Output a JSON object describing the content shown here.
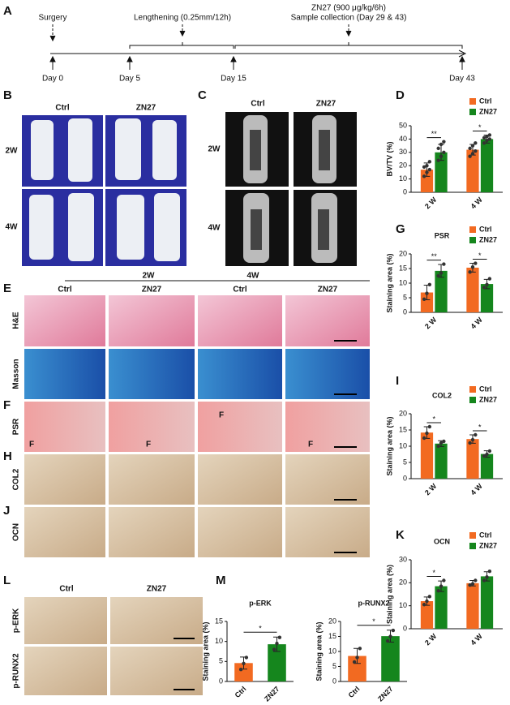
{
  "panel_labels": [
    "A",
    "B",
    "C",
    "D",
    "E",
    "F",
    "G",
    "H",
    "I",
    "J",
    "K",
    "L",
    "M"
  ],
  "timeline": {
    "events": [
      "Surgery",
      "Lengthening (0.25mm/12h)",
      "ZN27 (900 μg/kg/6h)",
      "Sample collection (Day 29 & 43)"
    ],
    "days": [
      "Day 0",
      "Day 5",
      "Day 15",
      "Day 43"
    ]
  },
  "panel_b": {
    "columns": [
      "Ctrl",
      "ZN27"
    ],
    "rows": [
      "2W",
      "4W"
    ]
  },
  "panel_c": {
    "columns": [
      "Ctrl",
      "ZN27"
    ],
    "rows": [
      "2W",
      "4W"
    ]
  },
  "panel_e": {
    "timepoints": [
      "2W",
      "4W"
    ],
    "columns": [
      "Ctrl",
      "ZN27",
      "Ctrl",
      "ZN27"
    ],
    "stains": [
      "H&E",
      "Masson",
      "PSR",
      "COL2",
      "OCN"
    ],
    "psr_marks": [
      "F",
      "F",
      "F",
      "F"
    ]
  },
  "panel_l": {
    "columns": [
      "Ctrl",
      "ZN27"
    ],
    "rows": [
      "p-ERK",
      "p-RUNX2"
    ]
  },
  "chart_data": [
    {
      "type": "bar",
      "ylabel": "BV/TV (%)",
      "categories": [
        "2 W",
        "4 W"
      ],
      "ylim": [
        0,
        50
      ],
      "yticks": [
        0,
        10,
        20,
        30,
        40,
        50
      ],
      "legend": "top-right",
      "annotations": [
        "**",
        "*"
      ],
      "series": [
        {
          "name": "Ctrl",
          "color": "#f26a21",
          "values": [
            17,
            32
          ],
          "errors": [
            5,
            4
          ],
          "points": [
            [
              12,
              15,
              17,
              19,
              20,
              23
            ],
            [
              27,
              29,
              31,
              33,
              35,
              37
            ]
          ]
        },
        {
          "name": "ZN27",
          "color": "#15861d",
          "values": [
            30,
            40
          ],
          "errors": [
            6,
            3
          ],
          "points": [
            [
              24,
              27,
              30,
              33,
              36,
              38
            ],
            [
              37,
              39,
              40,
              41,
              42,
              43
            ]
          ]
        }
      ]
    },
    {
      "type": "bar",
      "title": "PSR",
      "ylabel": "Staining area (%)",
      "categories": [
        "2 W",
        "4 W"
      ],
      "ylim": [
        0,
        20
      ],
      "yticks": [
        0,
        5,
        10,
        15,
        20
      ],
      "legend": "top-right",
      "annotations": [
        "**",
        "*"
      ],
      "series": [
        {
          "name": "Ctrl",
          "color": "#f26a21",
          "values": [
            6.8,
            15.3
          ],
          "errors": [
            2.5,
            1.5
          ],
          "points": [
            [
              4.5,
              6.5,
              9.5
            ],
            [
              13.8,
              15.5,
              16.8
            ]
          ]
        },
        {
          "name": "ZN27",
          "color": "#15861d",
          "values": [
            14.2,
            9.7
          ],
          "errors": [
            2.2,
            1.6
          ],
          "points": [
            [
              12.5,
              13.5,
              16.5
            ],
            [
              8.5,
              9.5,
              11.5
            ]
          ]
        }
      ]
    },
    {
      "type": "bar",
      "title": "COL2",
      "ylabel": "Staining area (%)",
      "categories": [
        "2 W",
        "4 W"
      ],
      "ylim": [
        0,
        20
      ],
      "yticks": [
        0,
        5,
        10,
        15,
        20
      ],
      "legend": "top-right",
      "annotations": [
        "*",
        "*"
      ],
      "series": [
        {
          "name": "Ctrl",
          "color": "#f26a21",
          "values": [
            14.2,
            12.2
          ],
          "errors": [
            1.8,
            1.3
          ],
          "points": [
            [
              12.5,
              14,
              16
            ],
            [
              11,
              12,
              13.5
            ]
          ]
        },
        {
          "name": "ZN27",
          "color": "#15861d",
          "values": [
            10.8,
            7.6
          ],
          "errors": [
            0.9,
            1
          ],
          "points": [
            [
              10,
              11,
              11.5
            ],
            [
              7,
              7.5,
              8.5
            ]
          ]
        }
      ]
    },
    {
      "type": "bar",
      "title": "OCN",
      "ylabel": "Staining area (%)",
      "categories": [
        "2 W",
        "4 W"
      ],
      "ylim": [
        0,
        30
      ],
      "yticks": [
        0,
        10,
        20,
        30
      ],
      "legend": "top-right",
      "annotations": [
        "*",
        null
      ],
      "series": [
        {
          "name": "Ctrl",
          "color": "#f26a21",
          "values": [
            12,
            19.8
          ],
          "errors": [
            1.8,
            1.2
          ],
          "points": [
            [
              10.5,
              12,
              14
            ],
            [
              19,
              19.5,
              21
            ]
          ]
        },
        {
          "name": "ZN27",
          "color": "#15861d",
          "values": [
            18.5,
            22.8
          ],
          "errors": [
            2.3,
            2
          ],
          "points": [
            [
              16.5,
              18.5,
              21
            ],
            [
              21,
              22.5,
              25
            ]
          ]
        }
      ]
    },
    {
      "type": "bar",
      "title": "p-ERK",
      "ylabel": "Staining area (%)",
      "categories": [
        "Ctrl",
        "ZN27"
      ],
      "colors": [
        "#f26a21",
        "#15861d"
      ],
      "values": [
        4.6,
        9.3
      ],
      "errors": [
        1.5,
        1.8
      ],
      "points": [
        [
          3,
          4.5,
          6
        ],
        [
          8,
          9.5,
          11
        ]
      ],
      "ylim": [
        0,
        15
      ],
      "yticks": [
        0,
        5,
        10,
        15
      ],
      "annotation": "*"
    },
    {
      "type": "bar",
      "title": "p-RUNX2",
      "ylabel": "Staining area (%)",
      "categories": [
        "Ctrl",
        "ZN27"
      ],
      "colors": [
        "#f26a21",
        "#15861d"
      ],
      "values": [
        8.5,
        15.1
      ],
      "errors": [
        2.5,
        2
      ],
      "points": [
        [
          6.5,
          8,
          11
        ],
        [
          13.5,
          15,
          17
        ]
      ],
      "ylim": [
        0,
        20
      ],
      "yticks": [
        0,
        5,
        10,
        15,
        20
      ],
      "annotation": "*"
    }
  ]
}
